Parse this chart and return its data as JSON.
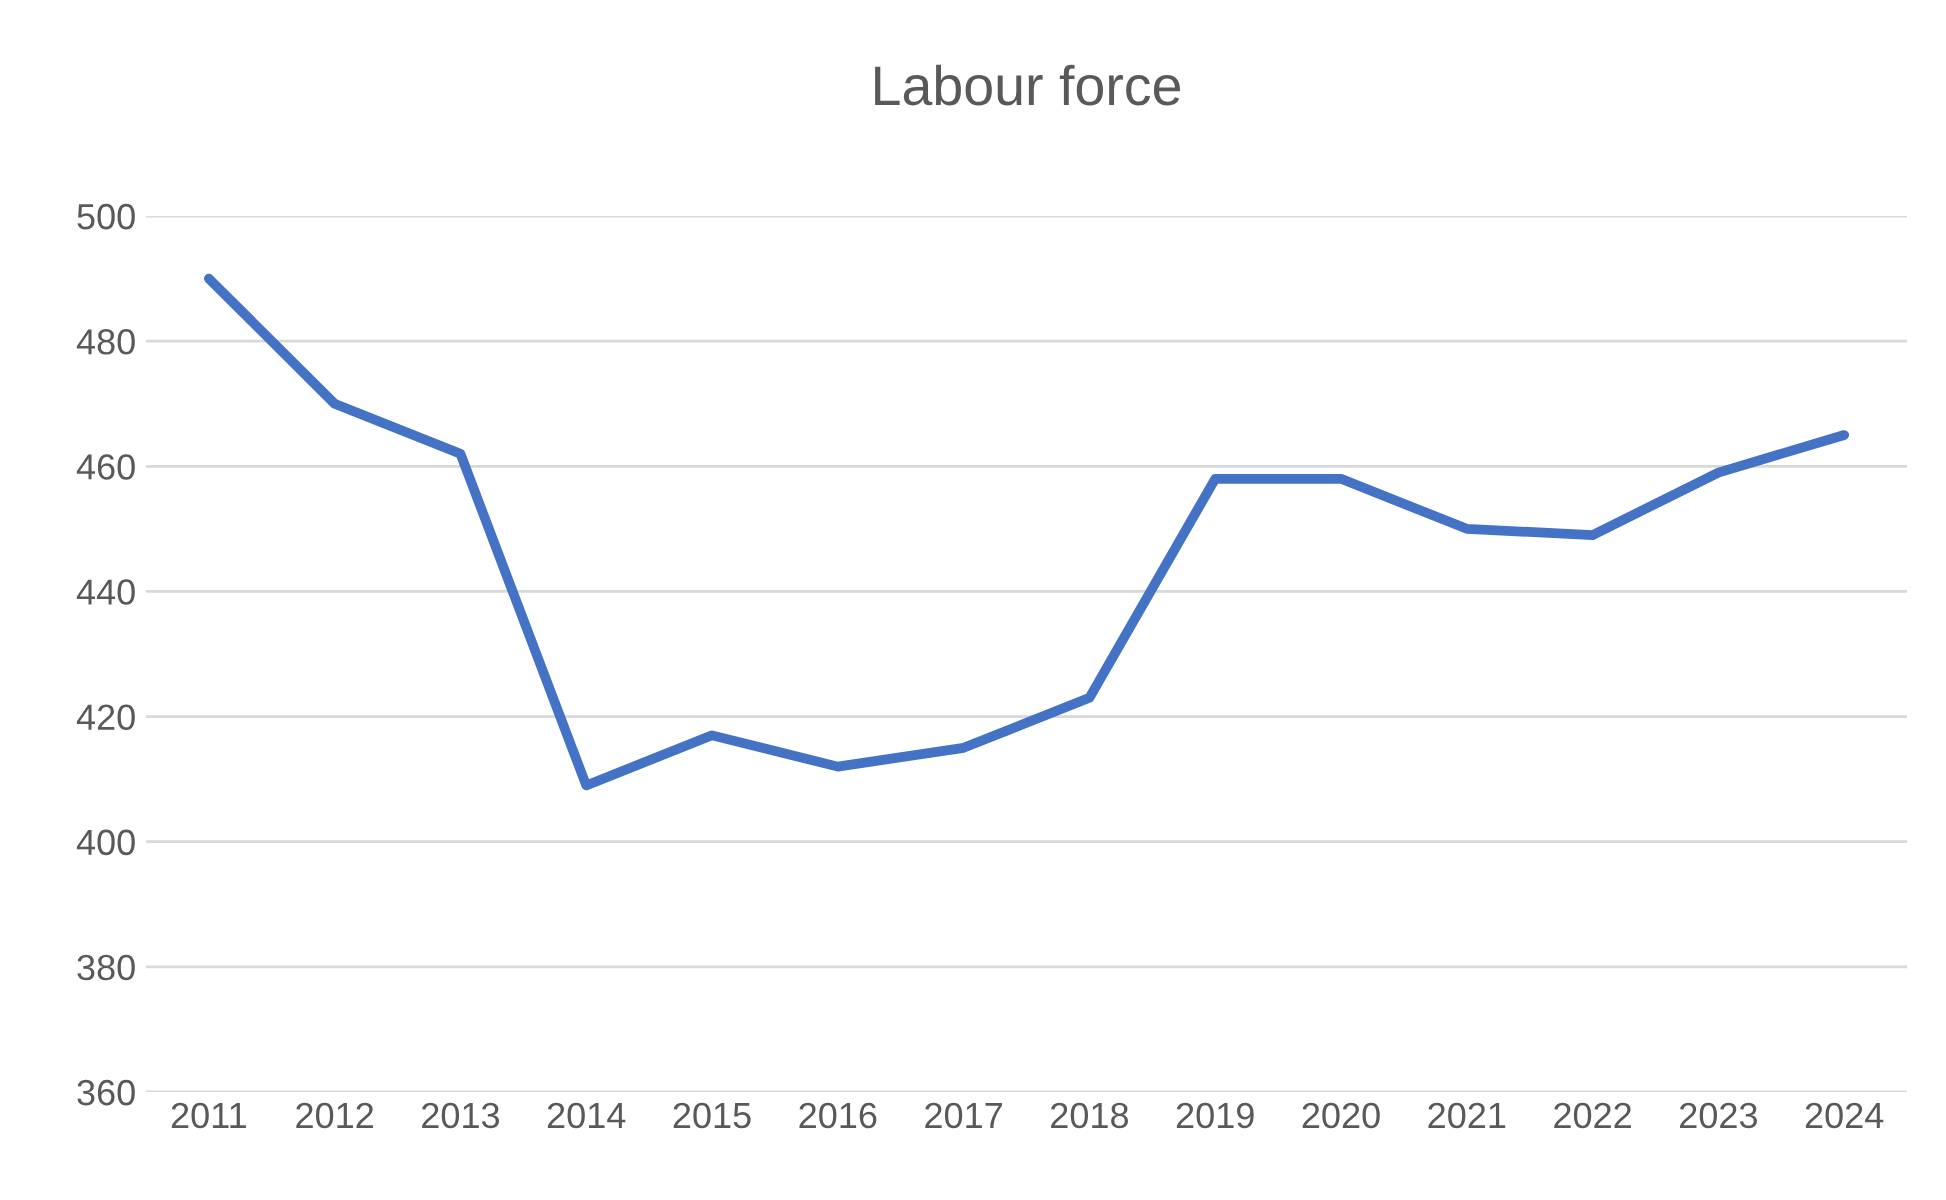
{
  "chart_data": {
    "type": "line",
    "title": "Labour force",
    "categories": [
      "2011",
      "2012",
      "2013",
      "2014",
      "2015",
      "2016",
      "2017",
      "2018",
      "2019",
      "2020",
      "2021",
      "2022",
      "2023",
      "2024"
    ],
    "series": [
      {
        "color": "#4472c4",
        "values": [
          490,
          470,
          462,
          409,
          417,
          412,
          415,
          423,
          458,
          458,
          450,
          449,
          459,
          465
        ]
      }
    ],
    "ylim": [
      360,
      500
    ],
    "yticks": [
      360,
      380,
      400,
      420,
      440,
      460,
      480,
      500
    ],
    "grid": "y",
    "legend": false,
    "marker": "none",
    "line_style": "solid"
  }
}
